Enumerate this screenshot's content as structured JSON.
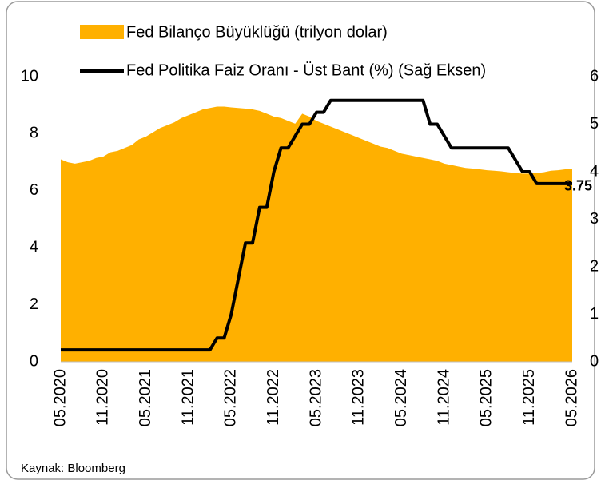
{
  "chart_data": {
    "type": "area-line",
    "source": "Kaynak: Bloomberg",
    "x": [
      "05.2020",
      "06.2020",
      "07.2020",
      "08.2020",
      "09.2020",
      "10.2020",
      "11.2020",
      "12.2020",
      "01.2021",
      "02.2021",
      "03.2021",
      "04.2021",
      "05.2021",
      "06.2021",
      "07.2021",
      "08.2021",
      "09.2021",
      "10.2021",
      "11.2021",
      "12.2021",
      "01.2022",
      "02.2022",
      "03.2022",
      "04.2022",
      "05.2022",
      "06.2022",
      "07.2022",
      "08.2022",
      "09.2022",
      "10.2022",
      "11.2022",
      "12.2022",
      "01.2023",
      "02.2023",
      "03.2023",
      "04.2023",
      "05.2023",
      "06.2023",
      "07.2023",
      "08.2023",
      "09.2023",
      "10.2023",
      "11.2023",
      "12.2023",
      "01.2024",
      "02.2024",
      "03.2024",
      "04.2024",
      "05.2024",
      "06.2024",
      "07.2024",
      "08.2024",
      "09.2024",
      "10.2024",
      "11.2024",
      "12.2024",
      "01.2025",
      "02.2025",
      "03.2025",
      "04.2025",
      "05.2025",
      "06.2025",
      "07.2025",
      "08.2025",
      "09.2025",
      "10.2025",
      "11.2025",
      "12.2025",
      "01.2026",
      "02.2026",
      "03.2026",
      "04.2026",
      "05.2026"
    ],
    "xticks": [
      "05.2020",
      "11.2020",
      "05.2021",
      "11.2021",
      "05.2022",
      "11.2022",
      "05.2023",
      "11.2023",
      "05.2024",
      "11.2024",
      "05.2025",
      "11.2025",
      "05.2026"
    ],
    "series": [
      {
        "name": "Fed Bilanço Büyüklüğü (trilyon dolar)",
        "color": "#FFB000",
        "axis": "y",
        "values": [
          7.1,
          7.0,
          6.95,
          7.0,
          7.05,
          7.15,
          7.2,
          7.35,
          7.4,
          7.5,
          7.6,
          7.8,
          7.9,
          8.05,
          8.2,
          8.3,
          8.4,
          8.55,
          8.65,
          8.75,
          8.85,
          8.9,
          8.95,
          8.95,
          8.92,
          8.9,
          8.88,
          8.85,
          8.8,
          8.7,
          8.6,
          8.55,
          8.45,
          8.35,
          8.7,
          8.6,
          8.45,
          8.35,
          8.25,
          8.15,
          8.05,
          7.95,
          7.85,
          7.75,
          7.65,
          7.55,
          7.5,
          7.4,
          7.3,
          7.25,
          7.2,
          7.15,
          7.1,
          7.05,
          6.95,
          6.9,
          6.85,
          6.8,
          6.78,
          6.75,
          6.72,
          6.7,
          6.68,
          6.65,
          6.62,
          6.6,
          6.6,
          6.62,
          6.65,
          6.7,
          6.72,
          6.75,
          6.78
        ]
      },
      {
        "name": "Fed Politika Faiz Oranı - Üst Bant (%) (Sağ Eksen)",
        "color": "#000000",
        "axis": "y2",
        "values": [
          0.25,
          0.25,
          0.25,
          0.25,
          0.25,
          0.25,
          0.25,
          0.25,
          0.25,
          0.25,
          0.25,
          0.25,
          0.25,
          0.25,
          0.25,
          0.25,
          0.25,
          0.25,
          0.25,
          0.25,
          0.25,
          0.25,
          0.5,
          0.5,
          1.0,
          1.75,
          2.5,
          2.5,
          3.25,
          3.25,
          4.0,
          4.5,
          4.5,
          4.75,
          5.0,
          5.0,
          5.25,
          5.25,
          5.5,
          5.5,
          5.5,
          5.5,
          5.5,
          5.5,
          5.5,
          5.5,
          5.5,
          5.5,
          5.5,
          5.5,
          5.5,
          5.5,
          5.0,
          5.0,
          4.75,
          4.5,
          4.5,
          4.5,
          4.5,
          4.5,
          4.5,
          4.5,
          4.5,
          4.5,
          4.25,
          4.0,
          4.0,
          3.75,
          3.75,
          3.75,
          3.75,
          3.75,
          3.75
        ]
      }
    ],
    "ylim": [
      0,
      10
    ],
    "yticks": [
      0,
      2,
      4,
      6,
      8,
      10
    ],
    "y2lim": [
      0,
      6
    ],
    "y2ticks": [
      0,
      1,
      2,
      3,
      4,
      5,
      6
    ]
  }
}
